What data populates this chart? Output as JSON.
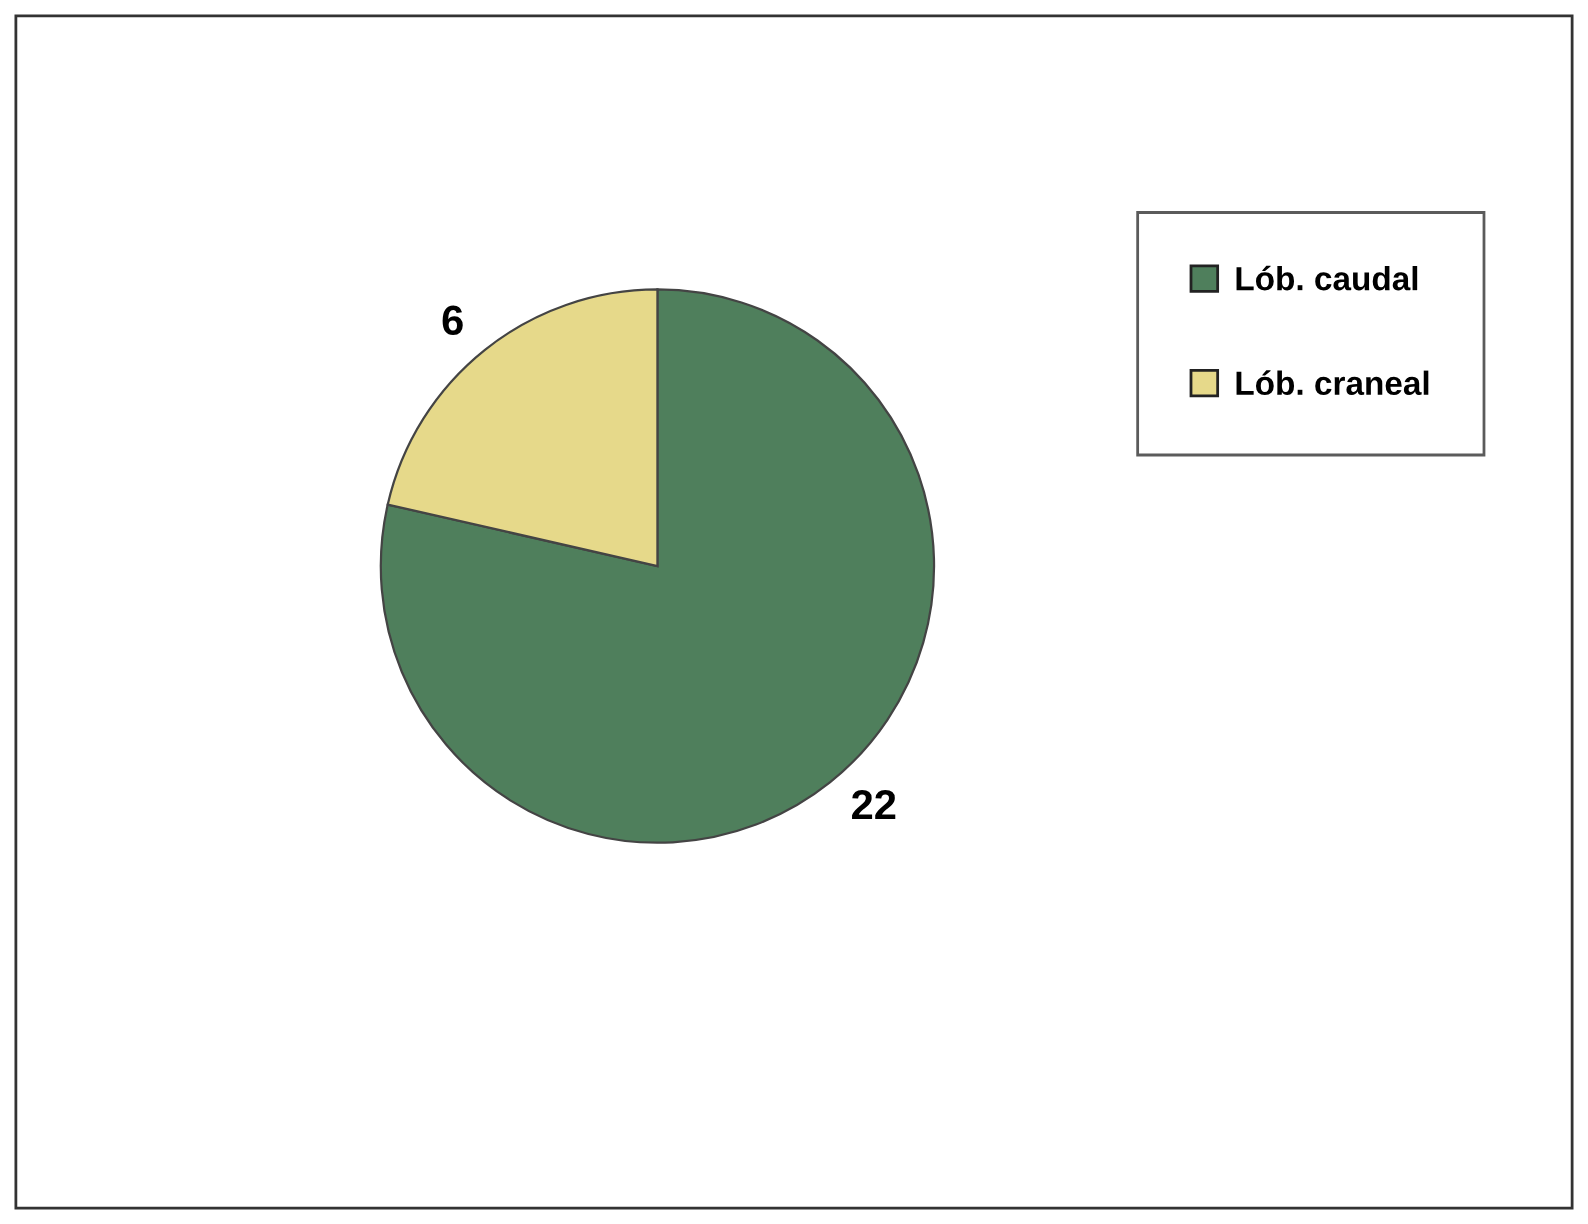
{
  "chart_data": {
    "type": "pie",
    "categories": [
      "Lób. caudal",
      "Lób. craneal"
    ],
    "values": [
      22,
      6
    ],
    "colors": [
      "#4f7f5c",
      "#e6d98a"
    ],
    "data_labels": true,
    "legend": "top right"
  }
}
